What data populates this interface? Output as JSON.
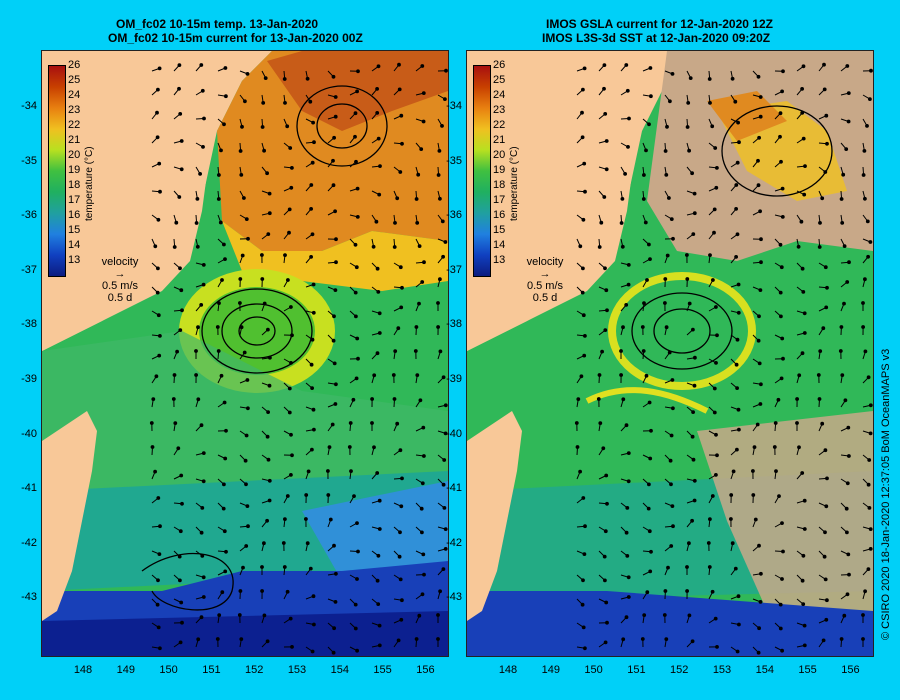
{
  "left_panel": {
    "title_line1": "OM_fc02 10-15m temp. 13-Jan-2020",
    "title_line2": "OM_fc02 10-15m current for 13-Jan-2020 00Z",
    "colorbar_title": "temperature (°C)",
    "velocity_label": "velocity",
    "velocity_scale": "0.5 m/s",
    "velocity_time": "0.5 d"
  },
  "right_panel": {
    "title_line1": "IMOS GSLA current for 12-Jan-2020 12Z",
    "title_line2": "IMOS L3S-3d SST at 12-Jan-2020 09:20Z",
    "colorbar_title": "temperature (°C)",
    "velocity_label": "velocity",
    "velocity_scale": "0.5 m/s",
    "velocity_time": "0.5 d"
  },
  "colorbar_ticks": [
    "26",
    "25",
    "24",
    "23",
    "22",
    "21",
    "20",
    "19",
    "18",
    "17",
    "16",
    "15",
    "14",
    "13"
  ],
  "y_ticks": [
    "-34",
    "-35",
    "-36",
    "-37",
    "-38",
    "-39",
    "-40",
    "-41",
    "-42",
    "-43"
  ],
  "x_ticks": [
    "148",
    "149",
    "150",
    "151",
    "152",
    "153",
    "154",
    "155",
    "156"
  ],
  "credit": "© CSIRO 2020   18-Jan-2020 12:37:05 BoM OceanMAPS v3",
  "colors": {
    "background": "#00d0f8",
    "land": "#f8c898",
    "cloud": "#c8a888"
  }
}
